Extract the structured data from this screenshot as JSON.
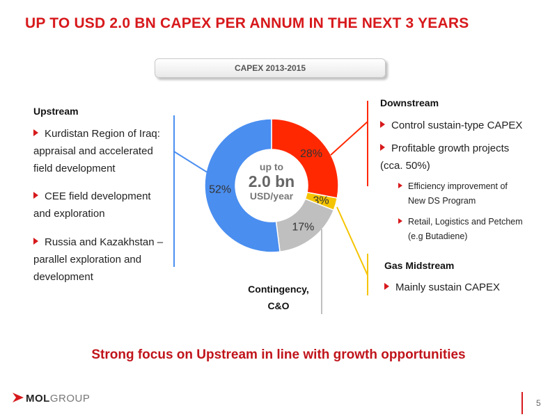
{
  "title": "UP TO USD 2.0 BN CAPEX PER ANNUM IN THE NEXT 3 YEARS",
  "period_label": "CAPEX 2013-2015",
  "center": {
    "line1": "up to",
    "line2": "2.0 bn",
    "line3": "USD/year"
  },
  "upstream": {
    "heading": "Upstream",
    "bullets": [
      [
        "Kurdistan Region of Iraq:",
        "appraisal and accelerated",
        "field development"
      ],
      [
        "CEE field development",
        "and exploration"
      ],
      [
        "Russia and Kazakhstan –",
        "parallel exploration and",
        "development"
      ]
    ]
  },
  "downstream": {
    "heading": "Downstream",
    "bullets": [
      [
        "Control sustain-type CAPEX"
      ],
      [
        "Profitable growth projects",
        "(cca. 50%)"
      ]
    ],
    "sub_bullets": [
      [
        "Efficiency improvement of",
        "New DS Program"
      ],
      [
        "Retail, Logistics and Petchem",
        "(e.g Butadiene)"
      ]
    ]
  },
  "gas_midstream": {
    "heading": "Gas Midstream",
    "bullets": [
      "Mainly sustain CAPEX"
    ]
  },
  "contingency": {
    "line1": "Contingency,",
    "line2": "C&O"
  },
  "bottom_message": "Strong focus on Upstream in line with growth opportunities",
  "logo": {
    "mol": "MOL",
    "group": "GROUP"
  },
  "page_number": "5",
  "chart_data": {
    "type": "pie",
    "style": "donut",
    "categories": [
      "Downstream",
      "Gas Midstream",
      "Contingency, C&O",
      "Upstream"
    ],
    "values": [
      28,
      3,
      17,
      52
    ],
    "labels": [
      "28%",
      "3%",
      "17%",
      "52%"
    ],
    "colors": [
      "#ff2800",
      "#f5c400",
      "#bfbfbf",
      "#4a8ef0"
    ]
  }
}
